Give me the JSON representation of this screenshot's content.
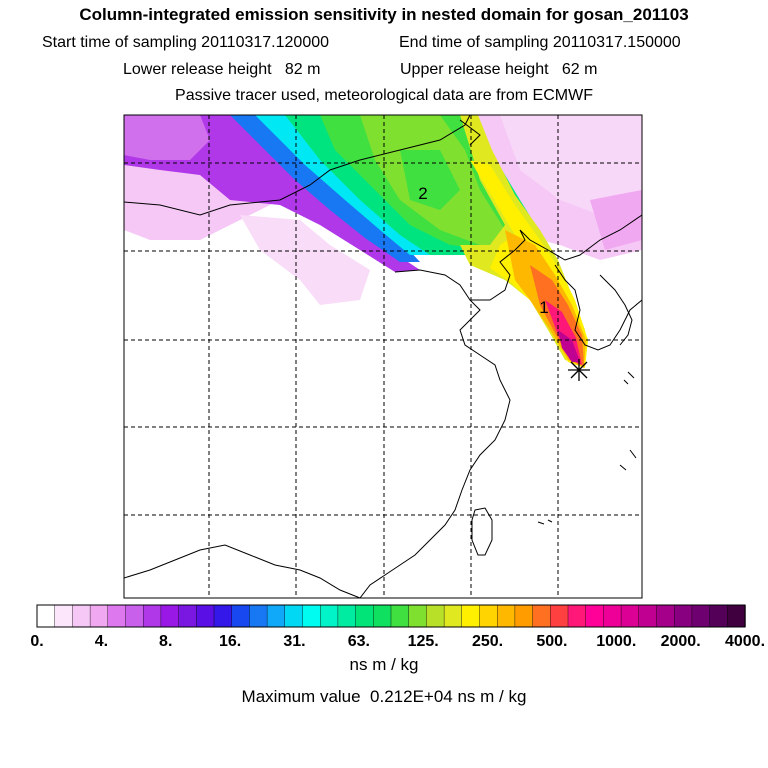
{
  "header": {
    "title": "Column-integrated emission sensitivity in nested domain for gosan_201103",
    "start_label": "Start time of sampling 20110317.120000",
    "end_label": "End time of sampling 20110317.150000",
    "lower_label": "Lower release height   82 m",
    "upper_label": "Upper release height   62 m",
    "note": "Passive tracer used, meteorological data are from ECMWF"
  },
  "map": {
    "markers": [
      {
        "label": "1",
        "value_rank": 1
      },
      {
        "label": "2",
        "value_rank": 2
      }
    ],
    "release_site_icon": "asterisk-icon",
    "gridlines": "dashed"
  },
  "colorbar": {
    "tick_labels": [
      "0.",
      "4.",
      "8.",
      "16.",
      "31.",
      "63.",
      "125.",
      "250.",
      "500.",
      "1000.",
      "2000.",
      "4000."
    ],
    "colors": [
      "#ffffff",
      "#fbe6fb",
      "#f6c8f6",
      "#f0a8f0",
      "#dd78ee",
      "#c860ec",
      "#b038e8",
      "#9a18e6",
      "#7a18e2",
      "#5a10e4",
      "#3418ea",
      "#1848f0",
      "#1878f4",
      "#10a8f8",
      "#00d8f4",
      "#00fcf0",
      "#00f4c8",
      "#00eca0",
      "#00e478",
      "#10e060",
      "#40e040",
      "#80e030",
      "#b8e028",
      "#e0e820",
      "#fff000",
      "#ffd400",
      "#ffb800",
      "#ff9c00",
      "#ff7020",
      "#ff4040",
      "#ff1878",
      "#ff0098",
      "#ee0098",
      "#dc0094",
      "#c00090",
      "#a4008a",
      "#880080",
      "#6e0070",
      "#540058",
      "#400040"
    ],
    "units": "ns m / kg"
  },
  "footer": {
    "max_label": "Maximum value  0.212E+04 ns m / kg"
  }
}
